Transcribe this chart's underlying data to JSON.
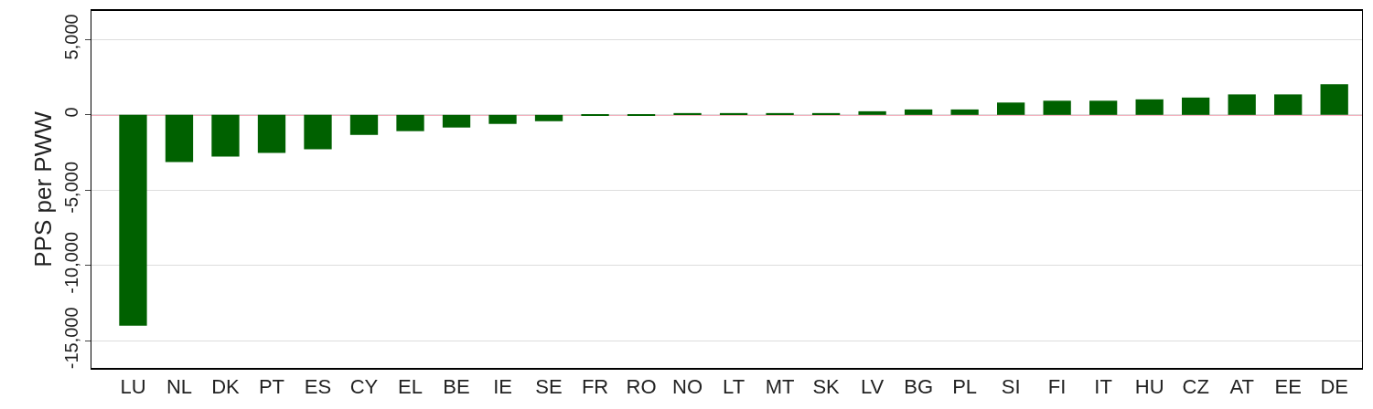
{
  "chart_data": {
    "type": "bar",
    "ylabel": "PPS per PWW",
    "categories": [
      "LU",
      "NL",
      "DK",
      "PT",
      "ES",
      "CY",
      "EL",
      "BE",
      "IE",
      "SE",
      "FR",
      "RO",
      "NO",
      "LT",
      "MT",
      "SK",
      "LV",
      "BG",
      "PL",
      "SI",
      "FI",
      "IT",
      "HU",
      "CZ",
      "AT",
      "EE",
      "DE"
    ],
    "series": [
      {
        "color": "#006100",
        "values": [
          -14000,
          -3130,
          -2770,
          -2530,
          -2290,
          -1330,
          -1080,
          -840,
          -600,
          -420,
          -50,
          -50,
          120,
          120,
          120,
          120,
          240,
          360,
          360,
          820,
          940,
          940,
          1030,
          1150,
          1360,
          1360,
          2030
        ]
      }
    ],
    "ylim": [
      -16800,
      6900
    ],
    "yticks": [
      {
        "value": -15000,
        "label": "-15,000"
      },
      {
        "value": -10000,
        "label": "-10,000"
      },
      {
        "value": -5000,
        "label": "-5,000"
      },
      0,
      {
        "value": 5000,
        "label": "5,000"
      }
    ],
    "grid": "y",
    "ref_lines": [
      {
        "axis": "y",
        "value": 0,
        "color": "#dc143c"
      }
    ]
  }
}
